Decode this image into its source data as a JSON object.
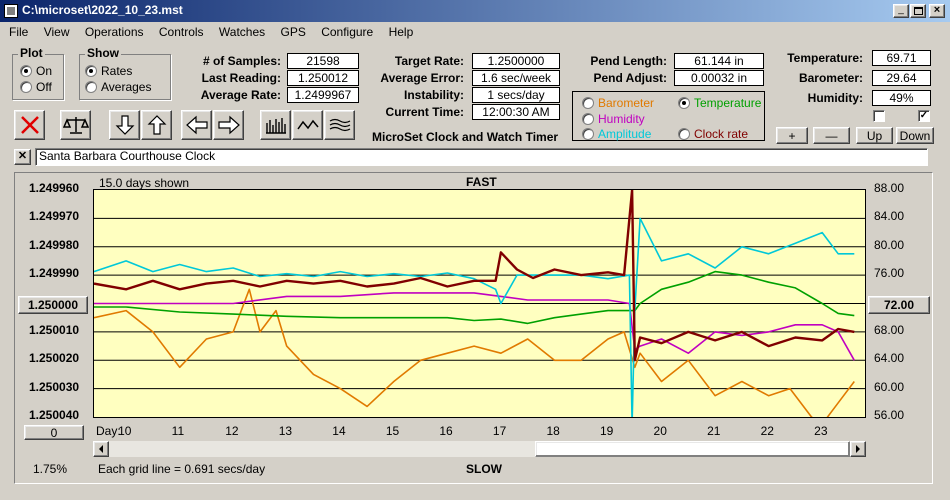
{
  "window": {
    "title": "C:\\microset\\2022_10_23.mst"
  },
  "menu": [
    "File",
    "View",
    "Operations",
    "Controls",
    "Watches",
    "GPS",
    "Configure",
    "Help"
  ],
  "plot_group": {
    "title": "Plot",
    "options": [
      "On",
      "Off"
    ],
    "selected": "On"
  },
  "show_group": {
    "title": "Show",
    "options": [
      "Rates",
      "Averages"
    ],
    "selected": "Rates"
  },
  "stats": {
    "samples_label": "# of Samples:",
    "samples": "21598",
    "last_label": "Last Reading:",
    "last": "1.250012",
    "avg_label": "Average Rate:",
    "avg": "1.2499967",
    "target_label": "Target Rate:",
    "target": "1.2500000",
    "error_label": "Average Error:",
    "error": "1.6 sec/week",
    "instab_label": "Instability:",
    "instab": "1 secs/day",
    "time_label": "Current Time:",
    "time": "12:00:30 AM",
    "pend_len_label": "Pend Length:",
    "pend_len": "61.144 in",
    "pend_adj_label": "Pend Adjust:",
    "pend_adj": "0.00032 in",
    "temp_label": "Temperature:",
    "temp": "69.71",
    "baro_label": "Barometer:",
    "baro": "29.64",
    "hum_label": "Humidity:",
    "hum": "49%"
  },
  "app_caption": "MicroSet Clock and Watch Timer",
  "sensor_options": [
    {
      "label": "Barometer",
      "color": "#e07a00",
      "selected": false
    },
    {
      "label": "Temperature",
      "color": "#00a000",
      "selected": true
    },
    {
      "label": "Humidity",
      "color": "#c000c0",
      "selected": false
    },
    {
      "label": "Clock rate",
      "color": "#800000",
      "selected": false
    },
    {
      "label": "Amplitude",
      "color": "#00c8d8",
      "selected": false
    }
  ],
  "aux_buttons": [
    "+",
    "—",
    "Up",
    "Down"
  ],
  "checkboxes": [
    false,
    true
  ],
  "clock_name": "Santa Barbara Courthouse Clock",
  "chart_header": {
    "days_shown": "15.0 days shown",
    "fast": "FAST",
    "slow": "SLOW",
    "grid_note": "Each grid line = 0.691 secs/day",
    "day_label": "Day:",
    "percent": "1.75%",
    "left_btn": "1.250000",
    "right_btn": "72.00",
    "zero_btn": "0"
  },
  "chart_data": {
    "type": "line",
    "xlabel": "Day:",
    "x_ticks": [
      "10",
      "11",
      "12",
      "13",
      "14",
      "15",
      "16",
      "17",
      "18",
      "19",
      "20",
      "21",
      "22",
      "23"
    ],
    "xlim": [
      9.4,
      23.8
    ],
    "y_left_ticks": [
      "1.249960",
      "1.249970",
      "1.249980",
      "1.249990",
      "1.250000",
      "1.250010",
      "1.250020",
      "1.250030",
      "1.250040"
    ],
    "y_left_range": [
      1.24996,
      1.25004
    ],
    "y_left_inverted": true,
    "y_right_ticks": [
      "88.00",
      "84.00",
      "80.00",
      "76.00",
      "72.00",
      "68.00",
      "64.00",
      "60.00",
      "56.00"
    ],
    "y_right_range": [
      56,
      88
    ],
    "series": [
      {
        "name": "Clock rate",
        "color": "#800000",
        "axis": "left",
        "x": [
          9.4,
          10,
          10.5,
          11,
          11.5,
          12,
          12.5,
          13,
          13.5,
          14,
          14.5,
          15,
          15.5,
          16,
          16.5,
          16.9,
          17,
          17.3,
          17.6,
          18,
          18.5,
          19,
          19.3,
          19.45,
          19.5,
          19.6,
          20,
          20.5,
          21,
          21.5,
          22,
          22.5,
          23,
          23.3,
          23.6
        ],
        "y": [
          1.249993,
          1.249995,
          1.249992,
          1.249995,
          1.249993,
          1.249992,
          1.249994,
          1.249992,
          1.249993,
          1.249992,
          1.249994,
          1.249993,
          1.249991,
          1.249994,
          1.249992,
          1.249992,
          1.249982,
          1.249988,
          1.249991,
          1.249988,
          1.24999,
          1.249989,
          1.24999,
          1.24996,
          1.25002,
          1.250012,
          1.250014,
          1.25001,
          1.250013,
          1.25001,
          1.250015,
          1.250012,
          1.250013,
          1.250009,
          1.25001
        ]
      },
      {
        "name": "Amplitude",
        "color": "#00c8d8",
        "axis": "right",
        "x": [
          9.4,
          10,
          10.5,
          11,
          11.5,
          12,
          12.5,
          13,
          13.5,
          14,
          14.5,
          15,
          15.5,
          16,
          16.5,
          16.9,
          17,
          17.3,
          18,
          18.5,
          19,
          19.4,
          19.45,
          19.5,
          19.6,
          20,
          20.5,
          21,
          21.5,
          22,
          22.5,
          23,
          23.3,
          23.6
        ],
        "y": [
          76.5,
          78,
          76.5,
          77.5,
          76.5,
          77,
          75.8,
          76.2,
          75.8,
          76.5,
          75.8,
          76.2,
          75.8,
          76.3,
          75.5,
          74,
          72,
          76,
          76,
          76,
          75.5,
          76,
          55,
          71,
          84,
          78,
          79,
          77,
          80,
          79,
          80.5,
          82,
          79,
          79
        ]
      },
      {
        "name": "Humidity",
        "color": "#c000c0",
        "axis": "right",
        "x": [
          9.4,
          10,
          11,
          12,
          13,
          14,
          15,
          16,
          16.5,
          17,
          17.5,
          18,
          18.5,
          19,
          19.4,
          19.5,
          19.6,
          20,
          20.5,
          21,
          21.5,
          22,
          22.5,
          23,
          23.3,
          23.6
        ],
        "y": [
          72,
          72,
          72,
          72,
          73,
          73,
          73.5,
          73.5,
          73.5,
          73,
          72.5,
          72.5,
          72.5,
          72.5,
          72,
          65.5,
          66,
          67,
          65,
          68,
          67.5,
          68,
          69,
          69,
          68,
          64
        ]
      },
      {
        "name": "Temperature",
        "color": "#00a000",
        "axis": "right",
        "x": [
          9.4,
          10,
          11,
          12,
          13,
          14,
          15,
          16,
          16.5,
          17,
          17.5,
          18,
          18.5,
          19,
          19.5,
          19.6,
          20,
          20.5,
          21,
          21.5,
          22,
          22.5,
          23,
          23.3,
          23.6
        ],
        "y": [
          71.5,
          71.5,
          70.8,
          70.5,
          70.2,
          70,
          70,
          70,
          69.6,
          69.8,
          69.2,
          70,
          70.5,
          71,
          71,
          72,
          74,
          75,
          76.5,
          76,
          75,
          74.2,
          72,
          70.6,
          70.3
        ]
      },
      {
        "name": "Barometer",
        "color": "#e07a00",
        "axis": "right",
        "x": [
          9.4,
          10,
          10.5,
          11,
          11.5,
          12,
          12.3,
          12.5,
          12.8,
          13,
          13.5,
          14,
          14.5,
          15,
          15.5,
          16,
          16.5,
          17,
          17.5,
          18,
          18.5,
          19,
          19.3,
          19.5,
          19.6,
          20,
          20.5,
          21,
          21.5,
          22,
          22.4,
          22.8,
          23,
          23.3,
          23.6
        ],
        "y": [
          70,
          71,
          68,
          63,
          67,
          68,
          74,
          68,
          71,
          66,
          62,
          60,
          57.5,
          61,
          64,
          65,
          66,
          65,
          67,
          64,
          64,
          67,
          68,
          63,
          65,
          61,
          64,
          59,
          61,
          59,
          60,
          56,
          55,
          58,
          61
        ]
      }
    ]
  }
}
